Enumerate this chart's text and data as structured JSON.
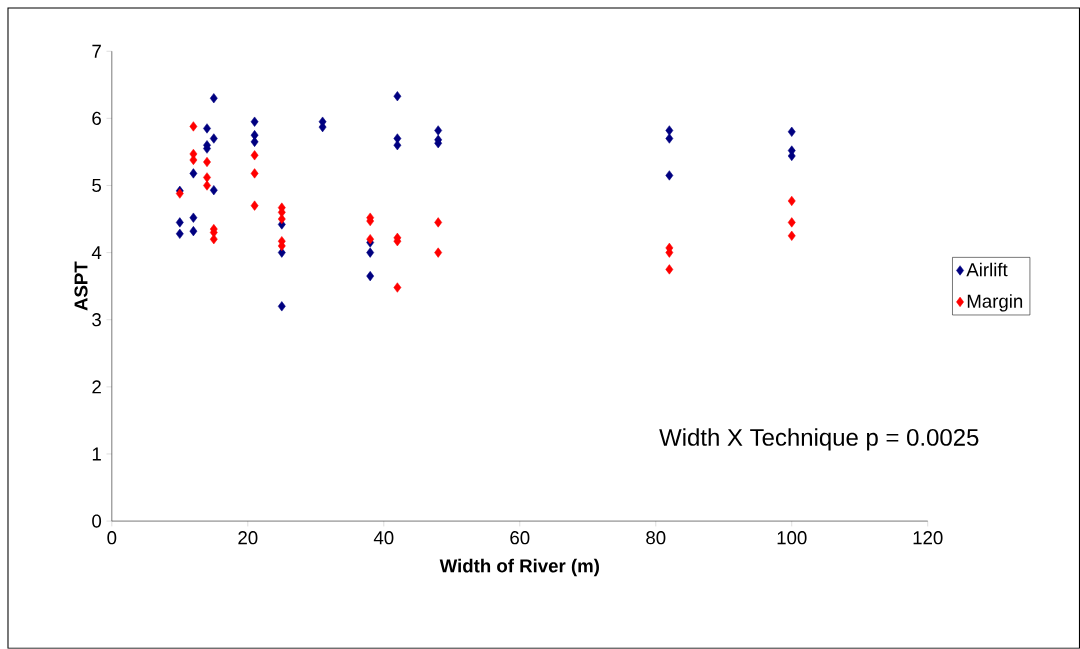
{
  "chart_data": {
    "type": "scatter",
    "xlabel": "Width of River (m)",
    "ylabel": "ASPT",
    "xlim": [
      0,
      120
    ],
    "ylim": [
      0,
      7
    ],
    "xticks": [
      0,
      20,
      40,
      60,
      80,
      100,
      120
    ],
    "yticks": [
      0,
      1,
      2,
      3,
      4,
      5,
      6,
      7
    ],
    "marker": "diamond",
    "legend": "right",
    "grid": false,
    "annotations": [
      "Width X Technique p = 0.0025"
    ],
    "series": [
      {
        "name": "Airlift",
        "color": "#000080",
        "x": [
          10,
          10,
          10,
          12,
          12,
          12,
          14,
          14,
          14,
          15,
          15,
          15,
          21,
          21,
          21,
          25,
          25,
          25,
          31,
          31,
          38,
          38,
          38,
          42,
          42,
          42,
          48,
          48,
          48,
          82,
          82,
          82,
          100,
          100,
          100
        ],
        "values": [
          4.92,
          4.45,
          4.28,
          5.18,
          4.52,
          4.32,
          5.85,
          5.55,
          5.6,
          6.3,
          5.7,
          4.93,
          5.95,
          5.75,
          5.65,
          4.42,
          4.0,
          3.2,
          5.95,
          5.87,
          4.15,
          4.0,
          3.65,
          6.33,
          5.7,
          5.6,
          5.82,
          5.68,
          5.63,
          5.82,
          5.7,
          5.15,
          5.8,
          5.52,
          5.44
        ]
      },
      {
        "name": "Margin",
        "color": "#ff0000",
        "x": [
          10,
          12,
          12,
          12,
          14,
          14,
          14,
          15,
          15,
          15,
          21,
          21,
          21,
          25,
          25,
          25,
          25,
          25,
          38,
          38,
          38,
          42,
          42,
          42,
          48,
          48,
          82,
          82,
          82,
          100,
          100,
          100
        ],
        "values": [
          4.88,
          5.88,
          5.47,
          5.38,
          5.35,
          5.12,
          5.0,
          4.35,
          4.3,
          4.2,
          5.45,
          5.18,
          4.7,
          4.67,
          4.6,
          4.5,
          4.17,
          4.1,
          4.52,
          4.47,
          4.2,
          4.22,
          4.17,
          3.48,
          4.45,
          4.0,
          4.07,
          4.0,
          3.75,
          4.77,
          4.45,
          4.25
        ]
      }
    ]
  }
}
